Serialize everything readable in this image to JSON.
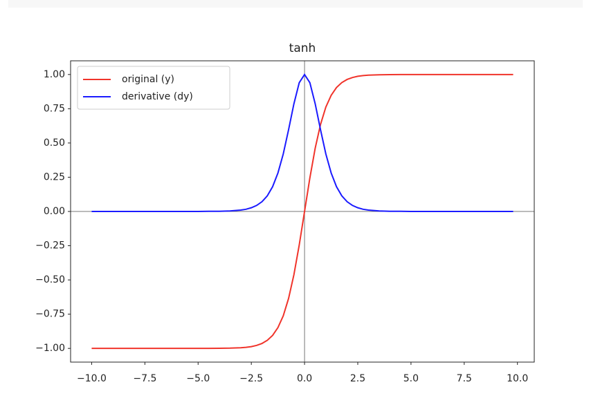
{
  "chart_data": {
    "type": "line",
    "title": "tanh",
    "x": [
      -10,
      -9,
      -8,
      -7,
      -6,
      -5,
      -4.5,
      -4,
      -3.5,
      -3,
      -2.75,
      -2.5,
      -2.25,
      -2,
      -1.75,
      -1.5,
      -1.25,
      -1,
      -0.75,
      -0.5,
      -0.25,
      0,
      0.25,
      0.5,
      0.75,
      1,
      1.25,
      1.5,
      1.75,
      2,
      2.25,
      2.5,
      2.75,
      3,
      3.5,
      4,
      4.5,
      5,
      6,
      7,
      8,
      9,
      9.8
    ],
    "series": [
      {
        "name": "original (y)",
        "color": "#f0332a",
        "values": [
          -1,
          -1,
          -1,
          -1,
          -1,
          -1,
          -1,
          -0.999,
          -0.998,
          -0.995,
          -0.992,
          -0.987,
          -0.978,
          -0.964,
          -0.941,
          -0.905,
          -0.848,
          -0.762,
          -0.635,
          -0.462,
          -0.245,
          0,
          0.245,
          0.462,
          0.635,
          0.762,
          0.848,
          0.905,
          0.941,
          0.964,
          0.978,
          0.987,
          0.992,
          0.995,
          0.998,
          0.999,
          1,
          1,
          1,
          1,
          1,
          1,
          1
        ]
      },
      {
        "name": "derivative (dy)",
        "color": "#1a1aff",
        "values": [
          0,
          0,
          0,
          0,
          0,
          0,
          0.001,
          0.001,
          0.004,
          0.01,
          0.016,
          0.027,
          0.044,
          0.071,
          0.114,
          0.181,
          0.281,
          0.42,
          0.597,
          0.786,
          0.94,
          1,
          0.94,
          0.786,
          0.597,
          0.42,
          0.281,
          0.181,
          0.114,
          0.071,
          0.044,
          0.027,
          0.016,
          0.01,
          0.004,
          0.001,
          0.001,
          0,
          0,
          0,
          0,
          0,
          0
        ]
      }
    ],
    "xlim": [
      -10.99,
      10.79
    ],
    "ylim": [
      -1.1,
      1.1
    ],
    "xticks": [
      {
        "value": -10,
        "label": "−10.0"
      },
      {
        "value": -7.5,
        "label": "−7.5"
      },
      {
        "value": -5,
        "label": "−5.0"
      },
      {
        "value": -2.5,
        "label": "−2.5"
      },
      {
        "value": 0,
        "label": "0.0"
      },
      {
        "value": 2.5,
        "label": "2.5"
      },
      {
        "value": 5,
        "label": "5.0"
      },
      {
        "value": 7.5,
        "label": "7.5"
      },
      {
        "value": 10,
        "label": "10.0"
      }
    ],
    "yticks": [
      {
        "value": -1,
        "label": "−1.00"
      },
      {
        "value": -0.75,
        "label": "−0.75"
      },
      {
        "value": -0.5,
        "label": "−0.50"
      },
      {
        "value": -0.25,
        "label": "−0.25"
      },
      {
        "value": 0,
        "label": "0.00"
      },
      {
        "value": 0.25,
        "label": "0.25"
      },
      {
        "value": 0.5,
        "label": "0.50"
      },
      {
        "value": 0.75,
        "label": "0.75"
      },
      {
        "value": 1,
        "label": "1.00"
      }
    ],
    "legend": "upper left",
    "grid": false
  }
}
